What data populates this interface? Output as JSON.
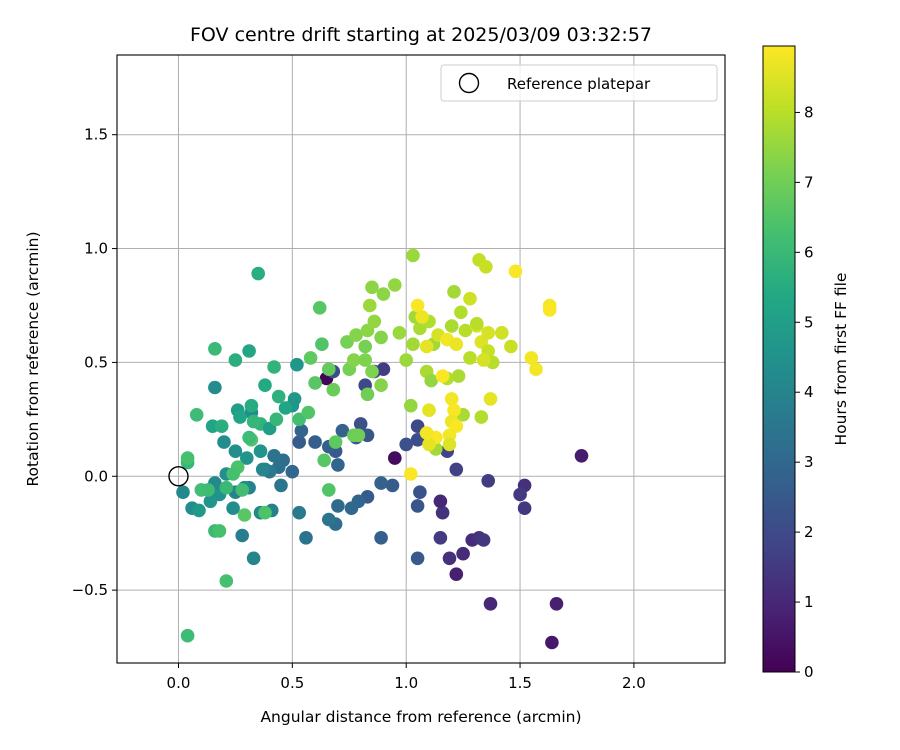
{
  "chart_data": {
    "type": "scatter",
    "title": "FOV centre drift starting at 2025/03/09 03:32:57",
    "xlabel": "Angular distance from reference (arcmin)",
    "ylabel": "Rotation from reference (arcmin)",
    "xlim": [
      -0.27,
      2.4
    ],
    "ylim": [
      -0.82,
      1.85
    ],
    "xticks": [
      0.0,
      0.5,
      1.0,
      1.5,
      2.0
    ],
    "xtick_labels": [
      "0.0",
      "0.5",
      "1.0",
      "1.5",
      "2.0"
    ],
    "yticks": [
      -0.5,
      0.0,
      0.5,
      1.0,
      1.5
    ],
    "ytick_labels": [
      "−0.5",
      "0.0",
      "0.5",
      "1.0",
      "1.5"
    ],
    "grid": true,
    "legend": {
      "position": "top-right",
      "label": "Reference platepar"
    },
    "reference_point": {
      "x": 0.0,
      "y": 0.0
    },
    "colorbar": {
      "label": "Hours from first FF file",
      "colormap": "viridis",
      "range": [
        0,
        8.95
      ],
      "ticks": [
        0,
        1,
        2,
        3,
        4,
        5,
        6,
        7,
        8
      ],
      "tick_labels": [
        "0",
        "1",
        "2",
        "3",
        "4",
        "5",
        "6",
        "7",
        "8"
      ]
    },
    "points": [
      {
        "x": 0.65,
        "y": 0.43,
        "h": 0.1
      },
      {
        "x": 0.95,
        "y": 0.08,
        "h": 0.3
      },
      {
        "x": 1.77,
        "y": 0.09,
        "h": 0.7
      },
      {
        "x": 1.64,
        "y": -0.73,
        "h": 0.6
      },
      {
        "x": 1.66,
        "y": -0.56,
        "h": 0.8
      },
      {
        "x": 1.37,
        "y": -0.56,
        "h": 1.0
      },
      {
        "x": 1.22,
        "y": -0.43,
        "h": 0.8
      },
      {
        "x": 1.19,
        "y": -0.36,
        "h": 1.2
      },
      {
        "x": 1.25,
        "y": -0.34,
        "h": 1.1
      },
      {
        "x": 1.29,
        "y": -0.28,
        "h": 1.1
      },
      {
        "x": 1.32,
        "y": -0.27,
        "h": 1.3
      },
      {
        "x": 1.34,
        "y": -0.28,
        "h": 1.4
      },
      {
        "x": 1.15,
        "y": -0.27,
        "h": 1.5
      },
      {
        "x": 1.16,
        "y": -0.16,
        "h": 1.3
      },
      {
        "x": 1.15,
        "y": -0.11,
        "h": 1.0
      },
      {
        "x": 1.52,
        "y": -0.14,
        "h": 1.4
      },
      {
        "x": 1.52,
        "y": -0.04,
        "h": 1.2
      },
      {
        "x": 1.5,
        "y": -0.08,
        "h": 1.5
      },
      {
        "x": 1.36,
        "y": -0.02,
        "h": 1.6
      },
      {
        "x": 1.22,
        "y": 0.03,
        "h": 1.7
      },
      {
        "x": 1.18,
        "y": 0.11,
        "h": 1.8
      },
      {
        "x": 1.05,
        "y": 0.22,
        "h": 2.0
      },
      {
        "x": 1.05,
        "y": 0.16,
        "h": 2.1
      },
      {
        "x": 1.0,
        "y": 0.14,
        "h": 2.2
      },
      {
        "x": 1.06,
        "y": -0.07,
        "h": 2.3
      },
      {
        "x": 1.05,
        "y": -0.13,
        "h": 2.4
      },
      {
        "x": 1.05,
        "y": -0.36,
        "h": 2.5
      },
      {
        "x": 0.89,
        "y": -0.27,
        "h": 2.7
      },
      {
        "x": 0.94,
        "y": -0.04,
        "h": 2.6
      },
      {
        "x": 0.89,
        "y": -0.03,
        "h": 2.8
      },
      {
        "x": 0.83,
        "y": -0.09,
        "h": 2.6
      },
      {
        "x": 0.79,
        "y": -0.11,
        "h": 2.9
      },
      {
        "x": 0.76,
        "y": -0.14,
        "h": 3.0
      },
      {
        "x": 0.7,
        "y": -0.13,
        "h": 3.1
      },
      {
        "x": 0.69,
        "y": -0.21,
        "h": 3.2
      },
      {
        "x": 0.66,
        "y": -0.19,
        "h": 3.5
      },
      {
        "x": 0.56,
        "y": -0.27,
        "h": 3.4
      },
      {
        "x": 0.53,
        "y": -0.16,
        "h": 3.6
      },
      {
        "x": 0.7,
        "y": 0.05,
        "h": 2.9
      },
      {
        "x": 0.69,
        "y": 0.11,
        "h": 2.5
      },
      {
        "x": 0.66,
        "y": 0.13,
        "h": 2.7
      },
      {
        "x": 0.6,
        "y": 0.15,
        "h": 2.7
      },
      {
        "x": 0.53,
        "y": 0.15,
        "h": 2.6
      },
      {
        "x": 0.54,
        "y": 0.2,
        "h": 2.9
      },
      {
        "x": 0.72,
        "y": 0.2,
        "h": 2.8
      },
      {
        "x": 0.78,
        "y": 0.17,
        "h": 2.5
      },
      {
        "x": 0.83,
        "y": 0.18,
        "h": 2.4
      },
      {
        "x": 0.8,
        "y": 0.23,
        "h": 2.2
      },
      {
        "x": 0.82,
        "y": 0.4,
        "h": 2.0
      },
      {
        "x": 0.86,
        "y": 0.46,
        "h": 1.8
      },
      {
        "x": 0.9,
        "y": 0.47,
        "h": 1.6
      },
      {
        "x": 0.68,
        "y": 0.46,
        "h": 2.1
      },
      {
        "x": 0.5,
        "y": 0.02,
        "h": 3.0
      },
      {
        "x": 0.46,
        "y": 0.07,
        "h": 3.2
      },
      {
        "x": 0.42,
        "y": 0.09,
        "h": 3.4
      },
      {
        "x": 0.44,
        "y": 0.04,
        "h": 3.3
      },
      {
        "x": 0.4,
        "y": 0.02,
        "h": 3.6
      },
      {
        "x": 0.38,
        "y": 0.03,
        "h": 3.7
      },
      {
        "x": 0.45,
        "y": -0.04,
        "h": 3.5
      },
      {
        "x": 0.41,
        "y": -0.15,
        "h": 3.9
      },
      {
        "x": 0.36,
        "y": -0.16,
        "h": 4.1
      },
      {
        "x": 0.31,
        "y": -0.05,
        "h": 3.9
      },
      {
        "x": 0.29,
        "y": -0.05,
        "h": 4.2
      },
      {
        "x": 0.28,
        "y": -0.26,
        "h": 3.8
      },
      {
        "x": 0.33,
        "y": -0.36,
        "h": 4.0
      },
      {
        "x": 0.24,
        "y": -0.14,
        "h": 4.3
      },
      {
        "x": 0.25,
        "y": -0.07,
        "h": 4.0
      },
      {
        "x": 0.18,
        "y": -0.08,
        "h": 4.5
      },
      {
        "x": 0.16,
        "y": -0.03,
        "h": 4.2
      },
      {
        "x": 0.02,
        "y": -0.07,
        "h": 4.2
      },
      {
        "x": 0.06,
        "y": -0.14,
        "h": 4.3
      },
      {
        "x": 0.09,
        "y": -0.15,
        "h": 4.8
      },
      {
        "x": 0.14,
        "y": -0.11,
        "h": 4.6
      },
      {
        "x": 0.21,
        "y": 0.01,
        "h": 4.4
      },
      {
        "x": 0.25,
        "y": 0.11,
        "h": 4.4
      },
      {
        "x": 0.3,
        "y": 0.08,
        "h": 4.6
      },
      {
        "x": 0.2,
        "y": 0.15,
        "h": 4.3
      },
      {
        "x": 0.16,
        "y": 0.39,
        "h": 4.3
      },
      {
        "x": 0.32,
        "y": 0.28,
        "h": 4.3
      },
      {
        "x": 0.36,
        "y": 0.11,
        "h": 4.6
      },
      {
        "x": 0.37,
        "y": 0.03,
        "h": 4.1
      },
      {
        "x": 0.51,
        "y": 0.34,
        "h": 4.7
      },
      {
        "x": 0.52,
        "y": 0.49,
        "h": 4.7
      },
      {
        "x": 0.5,
        "y": 0.31,
        "h": 4.6
      },
      {
        "x": 0.47,
        "y": 0.3,
        "h": 5.2
      },
      {
        "x": 0.38,
        "y": 0.4,
        "h": 5.4
      },
      {
        "x": 0.31,
        "y": 0.55,
        "h": 5.3
      },
      {
        "x": 0.25,
        "y": 0.51,
        "h": 5.6
      },
      {
        "x": 0.15,
        "y": 0.22,
        "h": 5.2
      },
      {
        "x": 0.19,
        "y": 0.22,
        "h": 5.6
      },
      {
        "x": 0.26,
        "y": 0.29,
        "h": 5.0
      },
      {
        "x": 0.27,
        "y": 0.26,
        "h": 5.2
      },
      {
        "x": 0.32,
        "y": 0.31,
        "h": 5.5
      },
      {
        "x": 0.36,
        "y": 0.23,
        "h": 5.8
      },
      {
        "x": 0.33,
        "y": 0.24,
        "h": 5.9
      },
      {
        "x": 0.4,
        "y": 0.21,
        "h": 5.0
      },
      {
        "x": 0.43,
        "y": 0.25,
        "h": 5.9
      },
      {
        "x": 0.44,
        "y": 0.35,
        "h": 5.7
      },
      {
        "x": 0.42,
        "y": 0.48,
        "h": 5.8
      },
      {
        "x": 0.35,
        "y": 0.89,
        "h": 5.6
      },
      {
        "x": 0.16,
        "y": 0.56,
        "h": 6.0
      },
      {
        "x": 0.08,
        "y": 0.27,
        "h": 6.1
      },
      {
        "x": 0.04,
        "y": 0.06,
        "h": 5.9
      },
      {
        "x": 0.04,
        "y": 0.08,
        "h": 6.3
      },
      {
        "x": 0.1,
        "y": -0.06,
        "h": 6.2
      },
      {
        "x": 0.13,
        "y": -0.06,
        "h": 6.1
      },
      {
        "x": 0.16,
        "y": -0.24,
        "h": 6.0
      },
      {
        "x": 0.18,
        "y": -0.24,
        "h": 6.3
      },
      {
        "x": 0.21,
        "y": -0.46,
        "h": 6.3
      },
      {
        "x": 0.04,
        "y": -0.7,
        "h": 6.1
      },
      {
        "x": 0.21,
        "y": -0.05,
        "h": 6.0
      },
      {
        "x": 0.26,
        "y": 0.04,
        "h": 6.4
      },
      {
        "x": 0.28,
        "y": -0.06,
        "h": 6.2
      },
      {
        "x": 0.24,
        "y": 0.01,
        "h": 6.3
      },
      {
        "x": 0.32,
        "y": 0.16,
        "h": 6.5
      },
      {
        "x": 0.38,
        "y": -0.16,
        "h": 6.4
      },
      {
        "x": 0.31,
        "y": 0.17,
        "h": 6.1
      },
      {
        "x": 0.29,
        "y": -0.17,
        "h": 6.6
      },
      {
        "x": 0.53,
        "y": 0.25,
        "h": 6.2
      },
      {
        "x": 0.57,
        "y": 0.28,
        "h": 6.5
      },
      {
        "x": 0.6,
        "y": 0.41,
        "h": 6.6
      },
      {
        "x": 0.58,
        "y": 0.52,
        "h": 6.7
      },
      {
        "x": 0.63,
        "y": 0.58,
        "h": 6.5
      },
      {
        "x": 0.62,
        "y": 0.74,
        "h": 6.6
      },
      {
        "x": 0.66,
        "y": 0.47,
        "h": 6.8
      },
      {
        "x": 0.68,
        "y": 0.38,
        "h": 6.9
      },
      {
        "x": 0.64,
        "y": 0.07,
        "h": 6.6
      },
      {
        "x": 0.66,
        "y": -0.06,
        "h": 6.5
      },
      {
        "x": 0.69,
        "y": 0.15,
        "h": 6.7
      },
      {
        "x": 0.77,
        "y": 0.18,
        "h": 6.9
      },
      {
        "x": 0.79,
        "y": 0.18,
        "h": 7.0
      },
      {
        "x": 0.83,
        "y": 0.36,
        "h": 7.0
      },
      {
        "x": 0.85,
        "y": 0.46,
        "h": 7.2
      },
      {
        "x": 0.75,
        "y": 0.47,
        "h": 7.1
      },
      {
        "x": 0.77,
        "y": 0.51,
        "h": 7.3
      },
      {
        "x": 0.82,
        "y": 0.51,
        "h": 7.2
      },
      {
        "x": 0.74,
        "y": 0.59,
        "h": 7.1
      },
      {
        "x": 0.78,
        "y": 0.62,
        "h": 7.3
      },
      {
        "x": 0.83,
        "y": 0.64,
        "h": 7.4
      },
      {
        "x": 0.82,
        "y": 0.57,
        "h": 7.1
      },
      {
        "x": 0.86,
        "y": 0.68,
        "h": 7.5
      },
      {
        "x": 0.84,
        "y": 0.75,
        "h": 7.6
      },
      {
        "x": 0.85,
        "y": 0.83,
        "h": 7.4
      },
      {
        "x": 0.9,
        "y": 0.8,
        "h": 7.4
      },
      {
        "x": 0.95,
        "y": 0.84,
        "h": 7.5
      },
      {
        "x": 0.89,
        "y": 0.61,
        "h": 7.3
      },
      {
        "x": 0.97,
        "y": 0.63,
        "h": 7.6
      },
      {
        "x": 0.89,
        "y": 0.4,
        "h": 7.3
      },
      {
        "x": 1.0,
        "y": 0.51,
        "h": 7.6
      },
      {
        "x": 1.03,
        "y": 0.58,
        "h": 7.7
      },
      {
        "x": 1.02,
        "y": 0.31,
        "h": 7.5
      },
      {
        "x": 1.03,
        "y": 0.97,
        "h": 7.6
      },
      {
        "x": 1.04,
        "y": 0.7,
        "h": 7.7
      },
      {
        "x": 1.06,
        "y": 0.65,
        "h": 7.8
      },
      {
        "x": 1.1,
        "y": 0.68,
        "h": 7.9
      },
      {
        "x": 1.12,
        "y": 0.58,
        "h": 7.7
      },
      {
        "x": 1.09,
        "y": 0.46,
        "h": 7.8
      },
      {
        "x": 1.11,
        "y": 0.42,
        "h": 7.5
      },
      {
        "x": 1.13,
        "y": 0.12,
        "h": 7.7
      },
      {
        "x": 1.18,
        "y": 0.43,
        "h": 7.9
      },
      {
        "x": 1.2,
        "y": 0.66,
        "h": 7.8
      },
      {
        "x": 1.21,
        "y": 0.81,
        "h": 7.7
      },
      {
        "x": 1.24,
        "y": 0.72,
        "h": 7.9
      },
      {
        "x": 1.26,
        "y": 0.64,
        "h": 8.0
      },
      {
        "x": 1.23,
        "y": 0.44,
        "h": 7.8
      },
      {
        "x": 1.25,
        "y": 0.27,
        "h": 7.8
      },
      {
        "x": 1.33,
        "y": 0.26,
        "h": 7.9
      },
      {
        "x": 1.32,
        "y": 0.95,
        "h": 8.1
      },
      {
        "x": 1.35,
        "y": 0.92,
        "h": 8.2
      },
      {
        "x": 1.28,
        "y": 0.78,
        "h": 8.3
      },
      {
        "x": 1.31,
        "y": 0.66,
        "h": 8.4
      },
      {
        "x": 1.33,
        "y": 0.59,
        "h": 8.5
      },
      {
        "x": 1.36,
        "y": 0.63,
        "h": 8.4
      },
      {
        "x": 1.42,
        "y": 0.63,
        "h": 8.3
      },
      {
        "x": 1.36,
        "y": 0.55,
        "h": 8.2
      },
      {
        "x": 1.38,
        "y": 0.5,
        "h": 8.0
      },
      {
        "x": 1.37,
        "y": 0.34,
        "h": 8.6
      },
      {
        "x": 1.46,
        "y": 0.57,
        "h": 8.2
      },
      {
        "x": 1.48,
        "y": 0.9,
        "h": 8.9
      },
      {
        "x": 1.55,
        "y": 0.52,
        "h": 8.8
      },
      {
        "x": 1.57,
        "y": 0.47,
        "h": 8.8
      },
      {
        "x": 1.63,
        "y": 0.75,
        "h": 8.8
      },
      {
        "x": 1.63,
        "y": 0.73,
        "h": 8.9
      },
      {
        "x": 1.05,
        "y": 0.75,
        "h": 8.9
      },
      {
        "x": 1.07,
        "y": 0.7,
        "h": 8.7
      },
      {
        "x": 1.09,
        "y": 0.57,
        "h": 8.6
      },
      {
        "x": 1.14,
        "y": 0.62,
        "h": 8.4
      },
      {
        "x": 1.18,
        "y": 0.6,
        "h": 8.8
      },
      {
        "x": 1.22,
        "y": 0.58,
        "h": 8.7
      },
      {
        "x": 1.16,
        "y": 0.44,
        "h": 8.9
      },
      {
        "x": 1.2,
        "y": 0.34,
        "h": 8.8
      },
      {
        "x": 1.21,
        "y": 0.29,
        "h": 8.9
      },
      {
        "x": 1.2,
        "y": 0.24,
        "h": 8.7
      },
      {
        "x": 1.22,
        "y": 0.22,
        "h": 8.9
      },
      {
        "x": 1.19,
        "y": 0.18,
        "h": 8.8
      },
      {
        "x": 1.13,
        "y": 0.17,
        "h": 8.9
      },
      {
        "x": 1.1,
        "y": 0.14,
        "h": 8.6
      },
      {
        "x": 1.09,
        "y": 0.19,
        "h": 8.8
      },
      {
        "x": 1.02,
        "y": 0.01,
        "h": 8.9
      },
      {
        "x": 1.1,
        "y": 0.29,
        "h": 8.6
      },
      {
        "x": 1.19,
        "y": 0.14,
        "h": 8.5
      },
      {
        "x": 1.31,
        "y": 0.67,
        "h": 8.0
      },
      {
        "x": 1.34,
        "y": 0.51,
        "h": 8.4
      },
      {
        "x": 1.28,
        "y": 0.52,
        "h": 8.0
      }
    ]
  }
}
